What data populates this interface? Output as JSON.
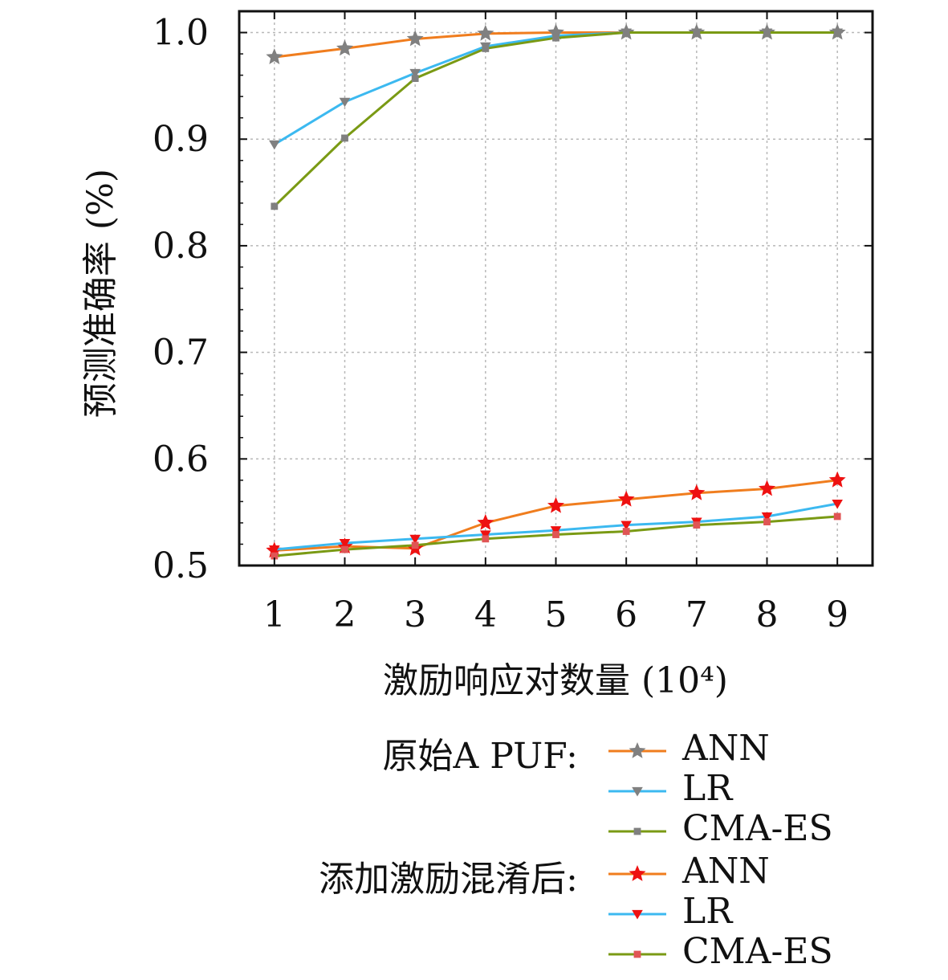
{
  "chart_data": {
    "type": "line",
    "title": "",
    "xlabel": "激励响应对数量 (10⁴)",
    "ylabel": "预测准确率 (%)",
    "x": [
      1,
      2,
      3,
      4,
      5,
      6,
      7,
      8,
      9
    ],
    "x_tick_labels": [
      "1",
      "2",
      "3",
      "4",
      "5",
      "6",
      "7",
      "8",
      "9"
    ],
    "xlim": [
      0.5,
      9.5
    ],
    "ylim": [
      0.5,
      1.02
    ],
    "y_ticks": [
      0.5,
      0.6,
      0.7,
      0.8,
      0.9,
      1.0
    ],
    "y_tick_labels": [
      "0.5",
      "0.6",
      "0.7",
      "0.8",
      "0.9",
      "1.0"
    ],
    "grid": true,
    "legend_position": "bottom",
    "legend_groups": [
      {
        "label": "原始A PUF:",
        "series": [
          0,
          1,
          2
        ]
      },
      {
        "label": "添加激励混淆后:",
        "series": [
          3,
          4,
          5
        ]
      }
    ],
    "series": [
      {
        "name": "ANN",
        "group": "原始A PUF",
        "line_color": "#f07d1e",
        "marker": "star",
        "marker_color": "#808080",
        "values": [
          0.977,
          0.985,
          0.994,
          0.999,
          1.0,
          1.0,
          1.0,
          1.0,
          1.0
        ]
      },
      {
        "name": "LR",
        "group": "原始A PUF",
        "line_color": "#3cb9f0",
        "marker": "triangle-down",
        "marker_color": "#808080",
        "values": [
          0.895,
          0.935,
          0.962,
          0.987,
          0.997,
          1.0,
          1.0,
          1.0,
          1.0
        ]
      },
      {
        "name": "CMA-ES",
        "group": "原始A PUF",
        "line_color": "#7a9a14",
        "marker": "square",
        "marker_color": "#808080",
        "values": [
          0.837,
          0.901,
          0.957,
          0.985,
          0.995,
          1.0,
          1.0,
          1.0,
          1.0
        ]
      },
      {
        "name": "ANN",
        "group": "添加激励混淆后",
        "line_color": "#f07d1e",
        "marker": "star",
        "marker_color": "#ee1111",
        "values": [
          0.514,
          0.518,
          0.516,
          0.54,
          0.556,
          0.562,
          0.568,
          0.572,
          0.58
        ]
      },
      {
        "name": "LR",
        "group": "添加激励混淆后",
        "line_color": "#3cb9f0",
        "marker": "triangle-down",
        "marker_color": "#ee1111",
        "values": [
          0.515,
          0.521,
          0.525,
          0.529,
          0.533,
          0.538,
          0.541,
          0.546,
          0.558
        ]
      },
      {
        "name": "CMA-ES",
        "group": "添加激励混淆后",
        "line_color": "#7a9a14",
        "marker": "square",
        "marker_color": "#e05555",
        "values": [
          0.509,
          0.515,
          0.519,
          0.525,
          0.529,
          0.532,
          0.538,
          0.541,
          0.546
        ]
      }
    ]
  }
}
